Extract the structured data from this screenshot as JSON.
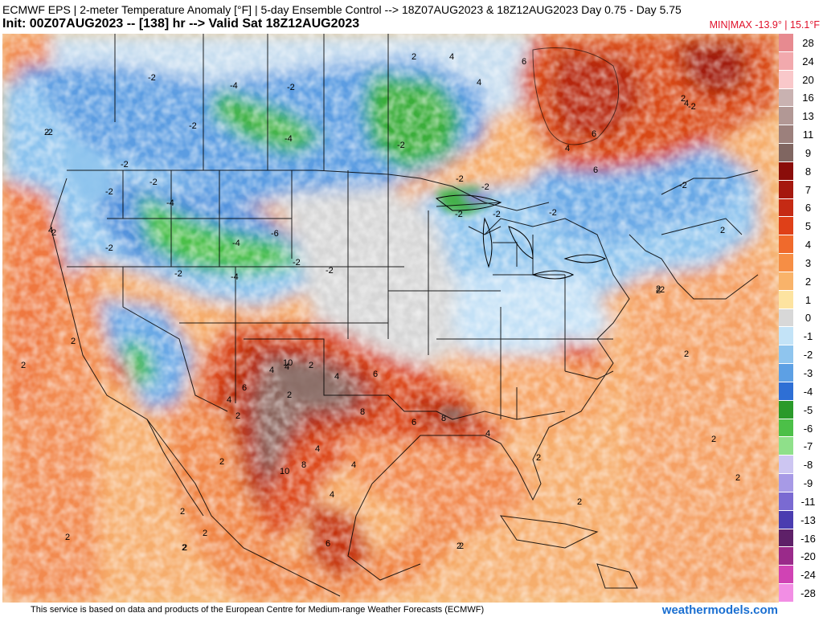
{
  "header": {
    "title_line1": "ECMWF EPS | 2-meter Temperature Anomaly [°F] | 5-day Ensemble Control --> 18Z07AUG2023 & 18Z12AUG2023   Day 0.75 - Day 5.75",
    "title_line2": "Init: 00Z07AUG2023 -- [138] hr --> Valid Sat 18Z12AUG2023",
    "minmax": "MIN|MAX -13.9° | 15.1°F"
  },
  "colorbar": {
    "entries": [
      {
        "label": "28",
        "color": "#e78a90"
      },
      {
        "label": "24",
        "color": "#f2a9ad"
      },
      {
        "label": "20",
        "color": "#f9c8ca"
      },
      {
        "label": "16",
        "color": "#c9b2b1"
      },
      {
        "label": "13",
        "color": "#b29895"
      },
      {
        "label": "11",
        "color": "#9c807c"
      },
      {
        "label": "9",
        "color": "#806661"
      },
      {
        "label": "8",
        "color": "#8a0d0a"
      },
      {
        "label": "7",
        "color": "#a5180e"
      },
      {
        "label": "6",
        "color": "#c52a14"
      },
      {
        "label": "5",
        "color": "#df4018"
      },
      {
        "label": "4",
        "color": "#f06a2c"
      },
      {
        "label": "3",
        "color": "#f68e45"
      },
      {
        "label": "2",
        "color": "#f9b36a"
      },
      {
        "label": "1",
        "color": "#fde3a0"
      },
      {
        "label": "0",
        "color": "#d8d8d8"
      },
      {
        "label": "-1",
        "color": "#c3e3f7"
      },
      {
        "label": "-2",
        "color": "#8fc5ee"
      },
      {
        "label": "-3",
        "color": "#5da0e4"
      },
      {
        "label": "-4",
        "color": "#2e6fd5"
      },
      {
        "label": "-5",
        "color": "#2a9a2a"
      },
      {
        "label": "-6",
        "color": "#4cc048"
      },
      {
        "label": "-7",
        "color": "#8fe08a"
      },
      {
        "label": "-8",
        "color": "#cdc6f2"
      },
      {
        "label": "-9",
        "color": "#a79ae6"
      },
      {
        "label": "-11",
        "color": "#7a6ad2"
      },
      {
        "label": "-13",
        "color": "#4a3cb0"
      },
      {
        "label": "-16",
        "color": "#5e2068"
      },
      {
        "label": "-20",
        "color": "#9a2a8a"
      },
      {
        "label": "-24",
        "color": "#d043b4"
      },
      {
        "label": "-28",
        "color": "#f28ee4"
      }
    ]
  },
  "map_labels": [
    {
      "text": "4"
    },
    {
      "text": "6"
    },
    {
      "text": "2"
    },
    {
      "text": "4"
    },
    {
      "text": "6"
    },
    {
      "text": "2"
    },
    {
      "text": "-2"
    },
    {
      "text": "-4"
    },
    {
      "text": "-2"
    },
    {
      "text": "-2"
    },
    {
      "text": "-4"
    },
    {
      "text": "-2"
    },
    {
      "text": "4"
    },
    {
      "text": "6"
    },
    {
      "text": "-2"
    },
    {
      "text": "-2"
    },
    {
      "text": "-2"
    },
    {
      "text": "-2"
    },
    {
      "text": "-2"
    },
    {
      "text": "-2"
    },
    {
      "text": "4"
    },
    {
      "text": "-2"
    },
    {
      "text": "-2"
    },
    {
      "text": "-4"
    },
    {
      "text": "-4"
    },
    {
      "text": "-6"
    },
    {
      "text": "-4"
    },
    {
      "text": "-2"
    },
    {
      "text": "-2"
    },
    {
      "text": "4"
    },
    {
      "text": "2"
    },
    {
      "text": "-2"
    },
    {
      "text": "-2"
    },
    {
      "text": "-2"
    },
    {
      "text": "-2"
    },
    {
      "text": "-2"
    },
    {
      "text": "2"
    },
    {
      "text": "2"
    },
    {
      "text": "4"
    },
    {
      "text": "4"
    },
    {
      "text": "2"
    },
    {
      "text": "4"
    },
    {
      "text": "10"
    },
    {
      "text": "6"
    },
    {
      "text": "6"
    },
    {
      "text": "2"
    },
    {
      "text": "4"
    },
    {
      "text": "4"
    },
    {
      "text": "8"
    },
    {
      "text": "6"
    },
    {
      "text": "8"
    },
    {
      "text": "4"
    },
    {
      "text": "10"
    },
    {
      "text": "4"
    },
    {
      "text": "8"
    },
    {
      "text": "2"
    },
    {
      "text": "2"
    },
    {
      "text": "2"
    },
    {
      "text": "2"
    },
    {
      "text": "6"
    },
    {
      "text": "2"
    },
    {
      "text": "2"
    },
    {
      "text": "2"
    },
    {
      "text": "2"
    },
    {
      "text": "2"
    },
    {
      "text": "2"
    },
    {
      "text": "2"
    },
    {
      "text": "2"
    },
    {
      "text": "2"
    },
    {
      "text": "2"
    },
    {
      "text": "4"
    },
    {
      "text": "2"
    },
    {
      "text": "2"
    },
    {
      "text": "2"
    },
    {
      "text": "2"
    },
    {
      "text": "2"
    }
  ],
  "footer": {
    "disclaimer": "This service is based on data and products of the European Centre for Medium-range Weather Forecasts (ECMWF)",
    "watermark": "weathermodels.com"
  }
}
